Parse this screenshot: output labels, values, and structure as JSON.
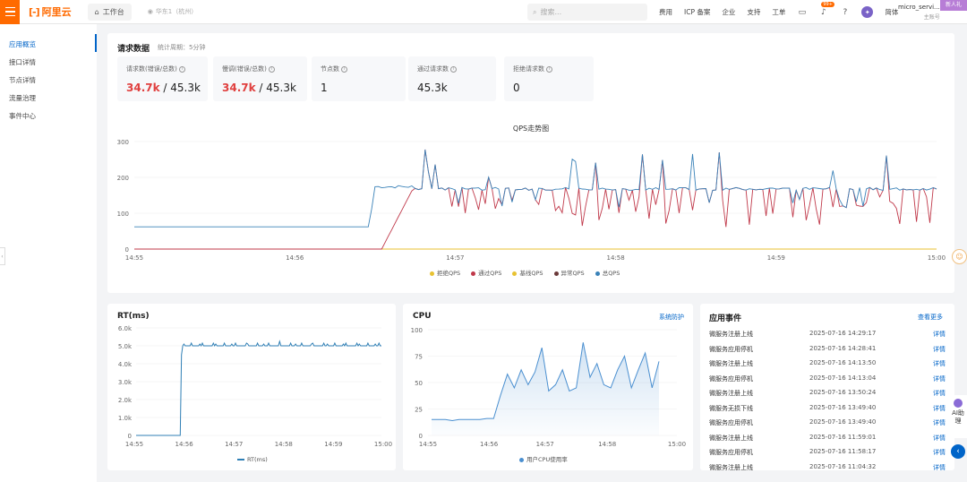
{
  "topbar": {
    "logo_text": "阿里云",
    "workbench": "工作台",
    "region": "华东1（杭州）",
    "search_placeholder": "搜索...",
    "nav": [
      "费用",
      "ICP 备案",
      "企业",
      "支持",
      "工单"
    ],
    "bell_badge": "99+",
    "lang": "简体",
    "user_name": "micro_servi...",
    "user_role": "主账号",
    "promo": "新人礼"
  },
  "sidebar": {
    "items": [
      "应用概览",
      "接口详情",
      "节点详情",
      "流量治理",
      "事件中心"
    ],
    "active_index": 0
  },
  "request": {
    "title": "请求数据",
    "period": "统计周期：5分钟",
    "stats": [
      {
        "label": "请求数(错误/总数)",
        "highlight": "34.7k",
        "rest": " / 45.3k"
      },
      {
        "label": "慢调(错误/总数)",
        "highlight": "34.7k",
        "rest": " / 45.3k"
      },
      {
        "label": "节点数",
        "highlight": "",
        "rest": "1"
      },
      {
        "label": "通过请求数",
        "highlight": "",
        "rest": "45.3k"
      },
      {
        "label": "拒绝请求数",
        "highlight": "",
        "rest": "0"
      }
    ]
  },
  "qps_chart": {
    "title": "QPS走势图",
    "y_ticks": [
      "0",
      "100",
      "200",
      "300"
    ],
    "ylim": [
      0,
      300
    ],
    "x_ticks": [
      "14:55",
      "14:56",
      "14:57",
      "14:58",
      "14:59",
      "15:00"
    ],
    "legend": [
      {
        "name": "拒绝QPS",
        "color": "#e8c232"
      },
      {
        "name": "通过QPS",
        "color": "#c0394a"
      },
      {
        "name": "基线QPS",
        "color": "#e8c232"
      },
      {
        "name": "异常QPS",
        "color": "#6b3a3a"
      },
      {
        "name": "总QPS",
        "color": "#3a82b8"
      }
    ]
  },
  "rt_chart": {
    "title": "RT(ms)",
    "y_ticks": [
      "0",
      "1.0k",
      "2.0k",
      "3.0k",
      "4.0k",
      "5.0k",
      "6.0k"
    ],
    "x_ticks": [
      "14:55",
      "14:56",
      "14:57",
      "14:58",
      "14:59",
      "15:00"
    ],
    "legend": "RT(ms)",
    "color": "#2f7fb5"
  },
  "cpu_chart": {
    "title": "CPU",
    "link": "系统防护",
    "y_ticks": [
      "0",
      "25",
      "50",
      "75",
      "100"
    ],
    "x_ticks": [
      "14:55",
      "14:56",
      "14:57",
      "14:58",
      "15:00"
    ],
    "legend": "用户CPU使用率",
    "color": "#4a8fd0"
  },
  "events": {
    "title": "应用事件",
    "more": "查看更多",
    "detail": "详情",
    "rows": [
      {
        "name": "微服务注册上线",
        "time": "2025-07-16 14:29:17"
      },
      {
        "name": "微服务应用停机",
        "time": "2025-07-16 14:28:41"
      },
      {
        "name": "微服务注册上线",
        "time": "2025-07-16 14:13:50"
      },
      {
        "name": "微服务应用停机",
        "time": "2025-07-16 14:13:04"
      },
      {
        "name": "微服务注册上线",
        "time": "2025-07-16 13:50:24"
      },
      {
        "name": "微服务无损下线",
        "time": "2025-07-16 13:49:40"
      },
      {
        "name": "微服务应用停机",
        "time": "2025-07-16 13:49:40"
      },
      {
        "name": "微服务注册上线",
        "time": "2025-07-16 11:59:01"
      },
      {
        "name": "微服务应用停机",
        "time": "2025-07-16 11:58:17"
      },
      {
        "name": "微服务注册上线",
        "time": "2025-07-16 11:04:32"
      }
    ]
  },
  "ai_assistant": "AI助理"
}
